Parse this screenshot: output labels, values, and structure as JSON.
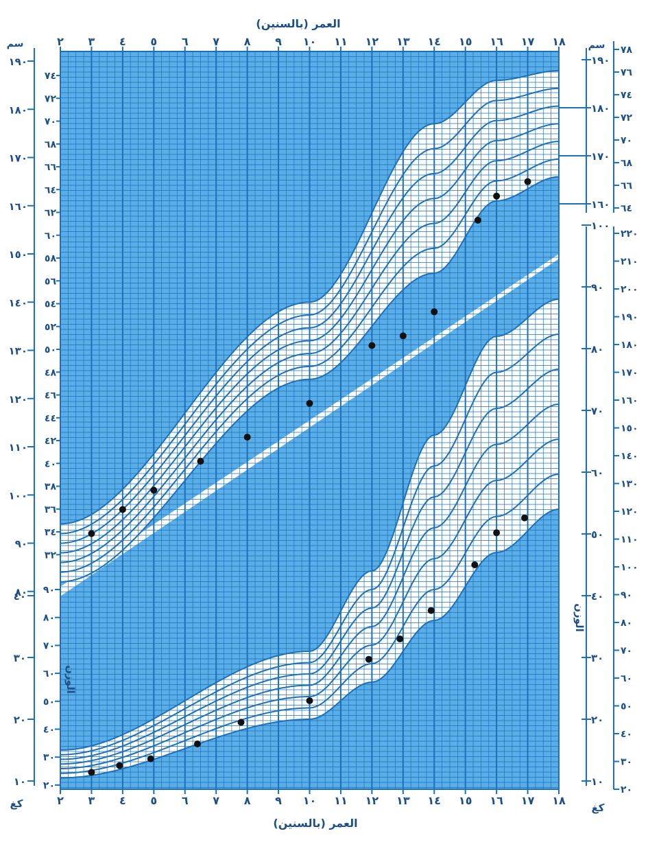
{
  "axis_title_top": "العمر (بالسنين)",
  "axis_title_bottom": "العمر (بالسنين)",
  "unit_height": "سم",
  "unit_weight": "كغ",
  "weight_label": "الوزن",
  "colors": {
    "blue": "#1d6fb8",
    "fill": "#5aaee8",
    "white": "#ffffff",
    "dot": "#111111"
  },
  "chart_data": {
    "type": "scatter",
    "title": "",
    "x_ticks": [
      "٢",
      "٣",
      "٤",
      "٥",
      "٦",
      "٧",
      "٨",
      "٩",
      "١٠",
      "١١",
      "١٢",
      "١٣",
      "١٤",
      "١٥",
      "١٦",
      "١٧",
      "١٨"
    ],
    "left_cm_ticks": [
      "١٩٠",
      "١٨٠",
      "١٧٠",
      "١٦٠",
      "١٥٠",
      "١٤٠",
      "١٣٠",
      "١٢٠",
      "١١٠",
      "١٠٠",
      "٩٠",
      "٨٠"
    ],
    "left_inch_ticks": [
      "٧٤",
      "٧٢",
      "٧٠",
      "٦٨",
      "٦٦",
      "٦٤",
      "٦٢",
      "٦٠",
      "٥٨",
      "٥٦",
      "٥٤",
      "٥٢",
      "٥٠",
      "٤٨",
      "٤٦",
      "٤٤",
      "٤٢",
      "٤٠",
      "٣٨",
      "٣٦",
      "٣٤",
      "٣٢"
    ],
    "left_kg_ticks": [
      "٤٠",
      "٣٠",
      "٢٠",
      "١٠"
    ],
    "left_lb_ticks": [
      "٩٠",
      "٨٠",
      "٧٠",
      "٦٠",
      "٥٠",
      "٤٠",
      "٣٠",
      "٢٠"
    ],
    "right_cm_ticks": [
      "١٩٠",
      "١٨٠",
      "١٧٠",
      "١٦٠"
    ],
    "right_inch_ticks": [
      "٧٨",
      "٧٦",
      "٧٤",
      "٧٢",
      "٧٠",
      "٦٨",
      "٦٦",
      "٦٤"
    ],
    "right_kg_ticks": [
      "١٠٠",
      "٩٠",
      "٨٠",
      "٧٠",
      "٦٠",
      "٥٠",
      "٤٠",
      "٣٠",
      "٢٠",
      "١٠"
    ],
    "right_lb_ticks": [
      "٢٢٠",
      "٢١٠",
      "٢٠٠",
      "١٩٠",
      "١٨٠",
      "١٧٠",
      "١٦٠",
      "١٥٠",
      "١٤٠",
      "١٣٠",
      "١٢٠",
      "١١٠",
      "١٠٠",
      "٩٠",
      "٨٠",
      "٧٠",
      "٦٠",
      "٥٠",
      "٤٠",
      "٣٠",
      "٢٠"
    ],
    "height_series": {
      "name": "",
      "x": [
        3,
        4,
        5,
        6.5,
        8,
        10,
        12,
        13,
        14,
        15.4,
        16,
        17
      ],
      "y": [
        92,
        97,
        101,
        107,
        112,
        119,
        131,
        133,
        138,
        157,
        162,
        165
      ]
    },
    "weight_series": {
      "name": "",
      "x": [
        3,
        3.9,
        4.9,
        6.4,
        7.8,
        10,
        11.9,
        12.9,
        13.9,
        15.3,
        16,
        16.9
      ],
      "y": [
        11.4,
        12.5,
        13.6,
        16,
        19.5,
        23,
        29.7,
        33,
        37.6,
        45,
        50.2,
        52.6
      ]
    },
    "xlim": [
      2,
      18
    ],
    "height_ylim": [
      78,
      193
    ],
    "weight_ylim": [
      9,
      105
    ],
    "grid": true
  }
}
